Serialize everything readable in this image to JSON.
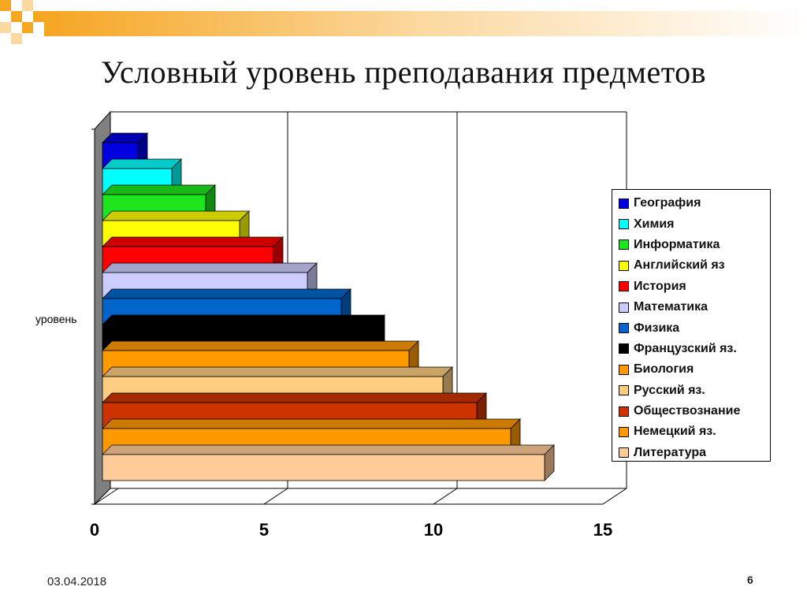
{
  "slide": {
    "title": "Условный уровень преподавания предметов",
    "date": "03.04.2018",
    "page_number": "6"
  },
  "colors": {
    "wall": "#808080",
    "gridline": "#000000",
    "decor_orange": "#f5a623",
    "decor_light": "#fbd9a0"
  },
  "chart_data": {
    "type": "bar",
    "orientation": "horizontal",
    "three_d": true,
    "title": "",
    "ylabel": "уровень",
    "xlabel": "",
    "xlim": [
      0,
      15
    ],
    "xticks": [
      "0",
      "5",
      "10",
      "15"
    ],
    "grid": true,
    "legend_position": "right",
    "series": [
      {
        "name": "География",
        "value": 1,
        "color": "#0000e0"
      },
      {
        "name": "Химия",
        "value": 2,
        "color": "#00ffff"
      },
      {
        "name": "Информатика",
        "value": 3,
        "color": "#1ee61e"
      },
      {
        "name": "Английский яз",
        "value": 4,
        "color": "#ffff00"
      },
      {
        "name": "История",
        "value": 5,
        "color": "#ff0000"
      },
      {
        "name": "Математика",
        "value": 6,
        "color": "#ccccff"
      },
      {
        "name": "Физика",
        "value": 7,
        "color": "#0066cc"
      },
      {
        "name": "Французский яз.",
        "value": 8,
        "color": "#000000"
      },
      {
        "name": "Биология",
        "value": 9,
        "color": "#ff9900"
      },
      {
        "name": "Русский яз.",
        "value": 10,
        "color": "#fccc80"
      },
      {
        "name": "Обществознание",
        "value": 11,
        "color": "#cc3300"
      },
      {
        "name": "Немецкий яз.",
        "value": 12,
        "color": "#ff9900"
      },
      {
        "name": "Литература",
        "value": 13,
        "color": "#ffcc99"
      }
    ]
  }
}
